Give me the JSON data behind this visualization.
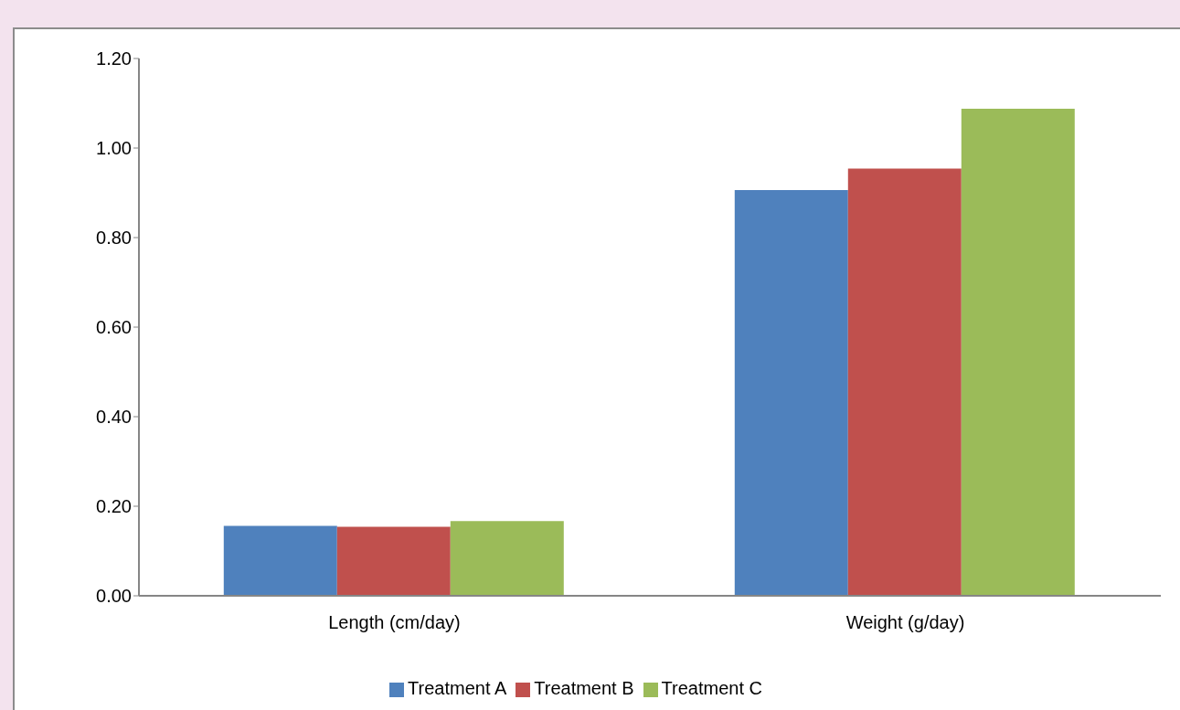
{
  "chart_data": {
    "type": "bar",
    "categories": [
      "Length (cm/day)",
      "Weight (g/day)"
    ],
    "series": [
      {
        "name": "Treatment A",
        "color": "#4f81bd",
        "values": [
          0.156,
          0.906
        ]
      },
      {
        "name": "Treatment B",
        "color": "#c0504d",
        "values": [
          0.154,
          0.954
        ]
      },
      {
        "name": "Treatment C",
        "color": "#9bbb59",
        "values": [
          0.167,
          1.088
        ]
      }
    ],
    "ylim": [
      0,
      1.2
    ],
    "yticks": [
      {
        "value": 0,
        "label": "0.00"
      },
      {
        "value": 0.2,
        "label": "0.20"
      },
      {
        "value": 0.4,
        "label": "0.40"
      },
      {
        "value": 0.6,
        "label": "0.60"
      },
      {
        "value": 0.8,
        "label": "0.80"
      },
      {
        "value": 1,
        "label": "1.00"
      },
      {
        "value": 1.2,
        "label": "1.20"
      }
    ],
    "grid": false,
    "legend": "bottom"
  }
}
